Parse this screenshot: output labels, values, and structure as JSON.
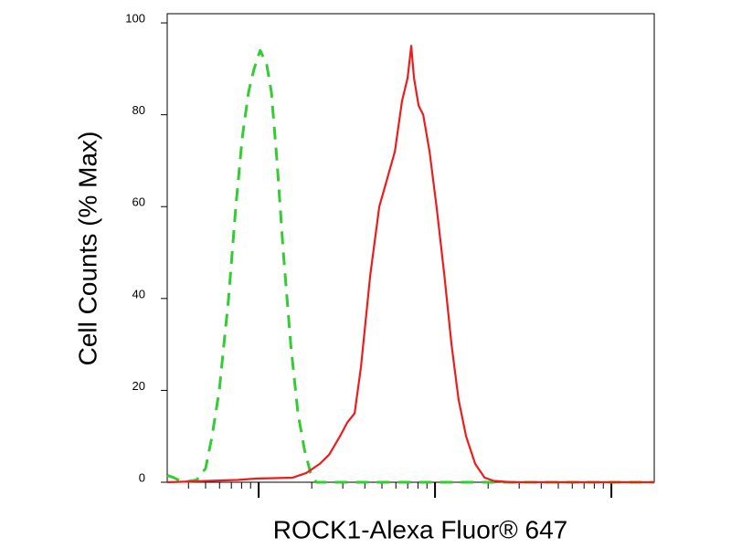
{
  "chart_data": {
    "type": "line",
    "x_label": "ROCK1-Alexa Fluor® 647",
    "y_label": "Cell Counts (% Max)",
    "xscale": "log",
    "xlim": [
      3.03,
      1750
    ],
    "xticks": [
      10,
      100,
      1000
    ],
    "ylim": [
      0,
      102
    ],
    "yticks": [
      0,
      20,
      40,
      60,
      80,
      100
    ],
    "series": [
      {
        "color": "#33cc33",
        "dashed": true,
        "x": [
          3.03,
          3.3,
          3.72,
          4.45,
          5.0,
          5.44,
          5.98,
          6.75,
          7.42,
          8.07,
          8.77,
          9.42,
          10.2,
          11.1,
          11.8,
          12.7,
          13.8,
          15.2,
          16.7,
          18.2,
          19.7,
          21.2,
          1750
        ],
        "values": [
          1.5,
          1,
          0,
          0.5,
          3,
          10,
          20,
          40,
          60,
          75,
          85,
          90,
          94,
          91,
          85,
          70,
          50,
          30,
          15,
          7,
          2,
          0,
          0
        ]
      },
      {
        "color": "#ee1c1c",
        "dashed": false,
        "x": [
          3.03,
          7.6,
          9.65,
          15.6,
          18.6,
          22.2,
          25.1,
          28.9,
          31.8,
          35.0,
          38.0,
          42.9,
          48.3,
          54.4,
          59.2,
          65.0,
          69.9,
          73.3,
          76.0,
          80.7,
          85.7,
          93.1,
          102,
          113,
          124,
          136,
          150,
          169,
          191,
          215,
          272,
          1750
        ],
        "values": [
          0,
          0.5,
          0.8,
          1,
          2,
          4,
          6,
          10,
          13,
          15,
          25,
          45,
          60,
          67,
          72,
          83,
          88,
          95,
          88,
          82,
          80,
          72,
          60,
          45,
          30,
          18,
          10,
          4,
          1,
          0.3,
          0,
          0
        ]
      }
    ]
  }
}
